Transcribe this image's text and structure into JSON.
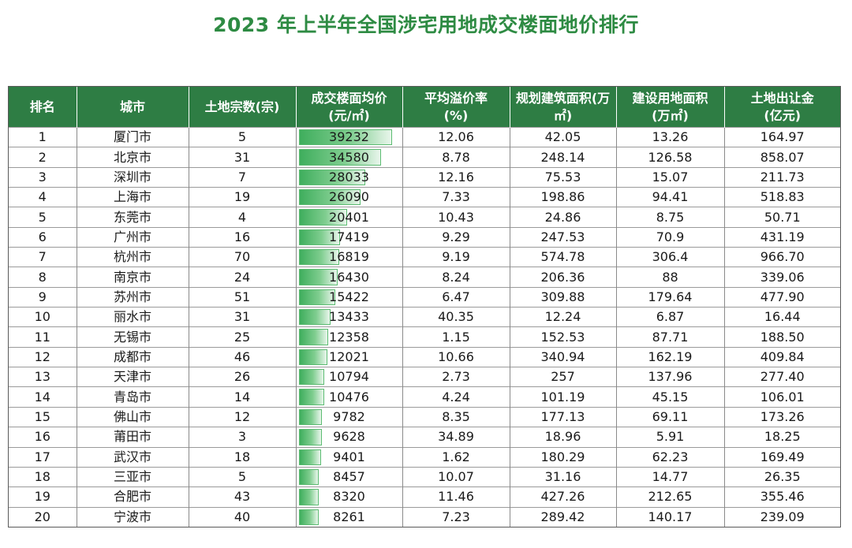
{
  "title": "2023 年上半年全国涉宅用地成交楼面地价排行",
  "columns": [
    {
      "line1": "排名",
      "line2": ""
    },
    {
      "line1": "城市",
      "line2": ""
    },
    {
      "line1": "土地宗数(宗)",
      "line2": ""
    },
    {
      "line1": "成交楼面均价",
      "line2": "(元/㎡)"
    },
    {
      "line1": "平均溢价率",
      "line2": "(%)"
    },
    {
      "line1": "规划建筑面积(万",
      "line2": "㎡)"
    },
    {
      "line1": "建设用地面积",
      "line2": "(万㎡)"
    },
    {
      "line1": "土地出让金",
      "line2": "(亿元)"
    }
  ],
  "bar_max": 39232,
  "rows": [
    {
      "rank": "1",
      "city": "厦门市",
      "count": "5",
      "price": 39232,
      "premium": "12.06",
      "build_area": "42.05",
      "land_area": "13.26",
      "revenue": "164.97"
    },
    {
      "rank": "2",
      "city": "北京市",
      "count": "31",
      "price": 34580,
      "premium": "8.78",
      "build_area": "248.14",
      "land_area": "126.58",
      "revenue": "858.07"
    },
    {
      "rank": "3",
      "city": "深圳市",
      "count": "7",
      "price": 28033,
      "premium": "12.16",
      "build_area": "75.53",
      "land_area": "15.07",
      "revenue": "211.73"
    },
    {
      "rank": "4",
      "city": "上海市",
      "count": "19",
      "price": 26090,
      "premium": "7.33",
      "build_area": "198.86",
      "land_area": "94.41",
      "revenue": "518.83"
    },
    {
      "rank": "5",
      "city": "东莞市",
      "count": "4",
      "price": 20401,
      "premium": "10.43",
      "build_area": "24.86",
      "land_area": "8.75",
      "revenue": "50.71"
    },
    {
      "rank": "6",
      "city": "广州市",
      "count": "16",
      "price": 17419,
      "premium": "9.29",
      "build_area": "247.53",
      "land_area": "70.9",
      "revenue": "431.19"
    },
    {
      "rank": "7",
      "city": "杭州市",
      "count": "70",
      "price": 16819,
      "premium": "9.19",
      "build_area": "574.78",
      "land_area": "306.4",
      "revenue": "966.70"
    },
    {
      "rank": "8",
      "city": "南京市",
      "count": "24",
      "price": 16430,
      "premium": "8.24",
      "build_area": "206.36",
      "land_area": "88",
      "revenue": "339.06"
    },
    {
      "rank": "9",
      "city": "苏州市",
      "count": "51",
      "price": 15422,
      "premium": "6.47",
      "build_area": "309.88",
      "land_area": "179.64",
      "revenue": "477.90"
    },
    {
      "rank": "10",
      "city": "丽水市",
      "count": "31",
      "price": 13433,
      "premium": "40.35",
      "build_area": "12.24",
      "land_area": "6.87",
      "revenue": "16.44"
    },
    {
      "rank": "11",
      "city": "无锡市",
      "count": "25",
      "price": 12358,
      "premium": "1.15",
      "build_area": "152.53",
      "land_area": "87.71",
      "revenue": "188.50"
    },
    {
      "rank": "12",
      "city": "成都市",
      "count": "46",
      "price": 12021,
      "premium": "10.66",
      "build_area": "340.94",
      "land_area": "162.19",
      "revenue": "409.84"
    },
    {
      "rank": "13",
      "city": "天津市",
      "count": "26",
      "price": 10794,
      "premium": "2.73",
      "build_area": "257",
      "land_area": "137.96",
      "revenue": "277.40"
    },
    {
      "rank": "14",
      "city": "青岛市",
      "count": "14",
      "price": 10476,
      "premium": "4.24",
      "build_area": "101.19",
      "land_area": "45.15",
      "revenue": "106.01"
    },
    {
      "rank": "15",
      "city": "佛山市",
      "count": "12",
      "price": 9782,
      "premium": "8.35",
      "build_area": "177.13",
      "land_area": "69.11",
      "revenue": "173.26"
    },
    {
      "rank": "16",
      "city": "莆田市",
      "count": "3",
      "price": 9628,
      "premium": "34.89",
      "build_area": "18.96",
      "land_area": "5.91",
      "revenue": "18.25"
    },
    {
      "rank": "17",
      "city": "武汉市",
      "count": "18",
      "price": 9401,
      "premium": "1.62",
      "build_area": "180.29",
      "land_area": "62.23",
      "revenue": "169.49"
    },
    {
      "rank": "18",
      "city": "三亚市",
      "count": "5",
      "price": 8457,
      "premium": "10.07",
      "build_area": "31.16",
      "land_area": "14.77",
      "revenue": "26.35"
    },
    {
      "rank": "19",
      "city": "合肥市",
      "count": "43",
      "price": 8320,
      "premium": "11.46",
      "build_area": "427.26",
      "land_area": "212.65",
      "revenue": "355.46"
    },
    {
      "rank": "20",
      "city": "宁波市",
      "count": "40",
      "price": 8261,
      "premium": "7.23",
      "build_area": "289.42",
      "land_area": "140.17",
      "revenue": "239.09"
    }
  ]
}
